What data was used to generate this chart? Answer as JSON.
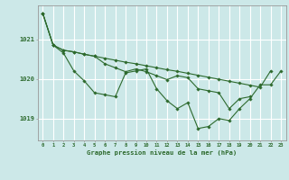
{
  "title": "Graphe pression niveau de la mer (hPa)",
  "background_color": "#cce8e8",
  "grid_color": "#ffffff",
  "line_color": "#2d6a2d",
  "marker_color": "#2d6a2d",
  "xlim": [
    -0.5,
    23.5
  ],
  "ylim": [
    1018.45,
    1021.85
  ],
  "yticks": [
    1019,
    1020,
    1021
  ],
  "xticks": [
    0,
    1,
    2,
    3,
    4,
    5,
    6,
    7,
    8,
    9,
    10,
    11,
    12,
    13,
    14,
    15,
    16,
    17,
    18,
    19,
    20,
    21,
    22,
    23
  ],
  "series": [
    [
      1021.65,
      1020.85,
      1020.65,
      1020.2,
      1019.95,
      1019.65,
      1019.6,
      1019.55,
      1020.15,
      1020.2,
      1020.25,
      1019.75,
      1019.45,
      1019.25,
      1019.4,
      1018.75,
      1018.8,
      1019.0,
      1018.95,
      1019.25,
      1019.5,
      1019.85,
      1019.85,
      1020.2
    ],
    [
      1021.65,
      1020.85,
      1020.72,
      1020.68,
      1020.62,
      1020.57,
      1020.52,
      1020.47,
      1020.42,
      1020.38,
      1020.33,
      1020.28,
      1020.23,
      1020.19,
      1020.14,
      1020.09,
      1020.04,
      1019.99,
      1019.94,
      1019.89,
      1019.84,
      1019.79,
      1020.2,
      null
    ],
    [
      1021.65,
      1020.85,
      1020.72,
      1020.68,
      1020.62,
      1020.57,
      1020.38,
      1020.28,
      1020.18,
      1020.25,
      1020.18,
      1020.08,
      1019.98,
      1020.08,
      1020.03,
      1019.75,
      1019.7,
      1019.65,
      1019.25,
      1019.5,
      1019.55,
      null,
      null,
      null
    ]
  ]
}
